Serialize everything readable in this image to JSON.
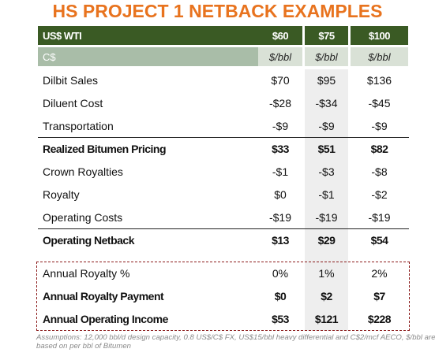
{
  "title": "HS PROJECT 1 NETBACK EXAMPLES",
  "header": {
    "label": "US$ WTI",
    "columns": [
      "$60",
      "$75",
      "$100"
    ]
  },
  "subheader": {
    "label": "C$",
    "columns": [
      "$/bbl",
      "$/bbl",
      "$/bbl"
    ]
  },
  "rows": [
    [
      "Dilbit Sales",
      "$70",
      "$95",
      "$136"
    ],
    [
      "Diluent Cost",
      "-$28",
      "-$34",
      "-$45"
    ],
    [
      "Transportation",
      "-$9",
      "-$9",
      "-$9"
    ],
    [
      "Realized Bitumen Pricing",
      "$33",
      "$51",
      "$82"
    ],
    [
      "Crown Royalties",
      "-$1",
      "-$3",
      "-$8"
    ],
    [
      "Royalty",
      "$0",
      "-$1",
      "-$2"
    ],
    [
      "Operating Costs",
      "-$19",
      "-$19",
      "-$19"
    ],
    [
      "Operating Netback",
      "$13",
      "$29",
      "$54"
    ]
  ],
  "highlighted_rows": [
    [
      "Annual Royalty %",
      "0%",
      "1%",
      "2%"
    ],
    [
      "Annual Royalty Payment",
      "$0",
      "$2",
      "$7"
    ],
    [
      "Annual Operating Income",
      "$53",
      "$121",
      "$228"
    ]
  ],
  "footnote": "Assumptions: 12,000 bbl/d design capacity, 0.8 US$/C$ FX, US$15/bbl heavy differential and C$2/mcf AECO, $/bbl are based on per bbl of Bitumen"
}
